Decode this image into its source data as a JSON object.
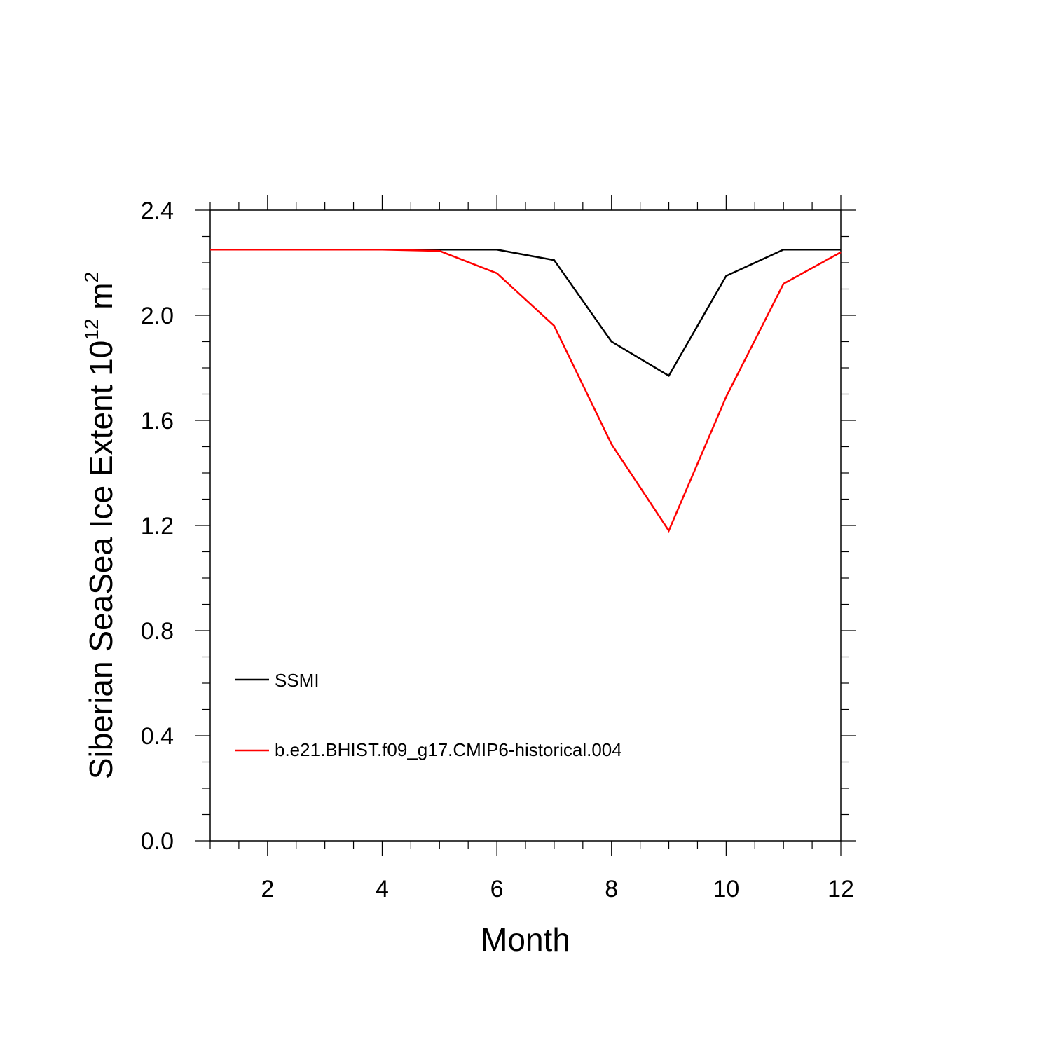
{
  "chart_data": {
    "type": "line",
    "xlabel": "Month",
    "ylabel": {
      "prefix": "Siberian SeaSea Ice Extent 10",
      "exponent1": "12",
      "unit": " m",
      "exponent2": "2"
    },
    "xlim": [
      1,
      12
    ],
    "ylim": [
      0,
      2.4
    ],
    "xticks": [
      2,
      4,
      6,
      8,
      10,
      12
    ],
    "yticks": [
      0.0,
      0.4,
      0.8,
      1.2,
      1.6,
      2.0,
      2.4
    ],
    "ytick_labels": [
      "0.0",
      "0.4",
      "0.8",
      "1.2",
      "1.6",
      "2.0",
      "2.4"
    ],
    "grid": false,
    "legend_position": "lower-left",
    "x": [
      1,
      2,
      3,
      4,
      5,
      6,
      7,
      8,
      9,
      10,
      11,
      12
    ],
    "series": [
      {
        "name": "SSMI",
        "color": "#000000",
        "values": [
          2.25,
          2.25,
          2.25,
          2.25,
          2.25,
          2.25,
          2.21,
          1.9,
          1.77,
          2.15,
          2.25,
          2.25
        ]
      },
      {
        "name": "b.e21.BHIST.f09_g17.CMIP6-historical.004",
        "color": "#ff0000",
        "values": [
          2.25,
          2.25,
          2.25,
          2.25,
          2.245,
          2.16,
          1.96,
          1.51,
          1.18,
          1.69,
          2.12,
          2.24
        ]
      }
    ]
  }
}
